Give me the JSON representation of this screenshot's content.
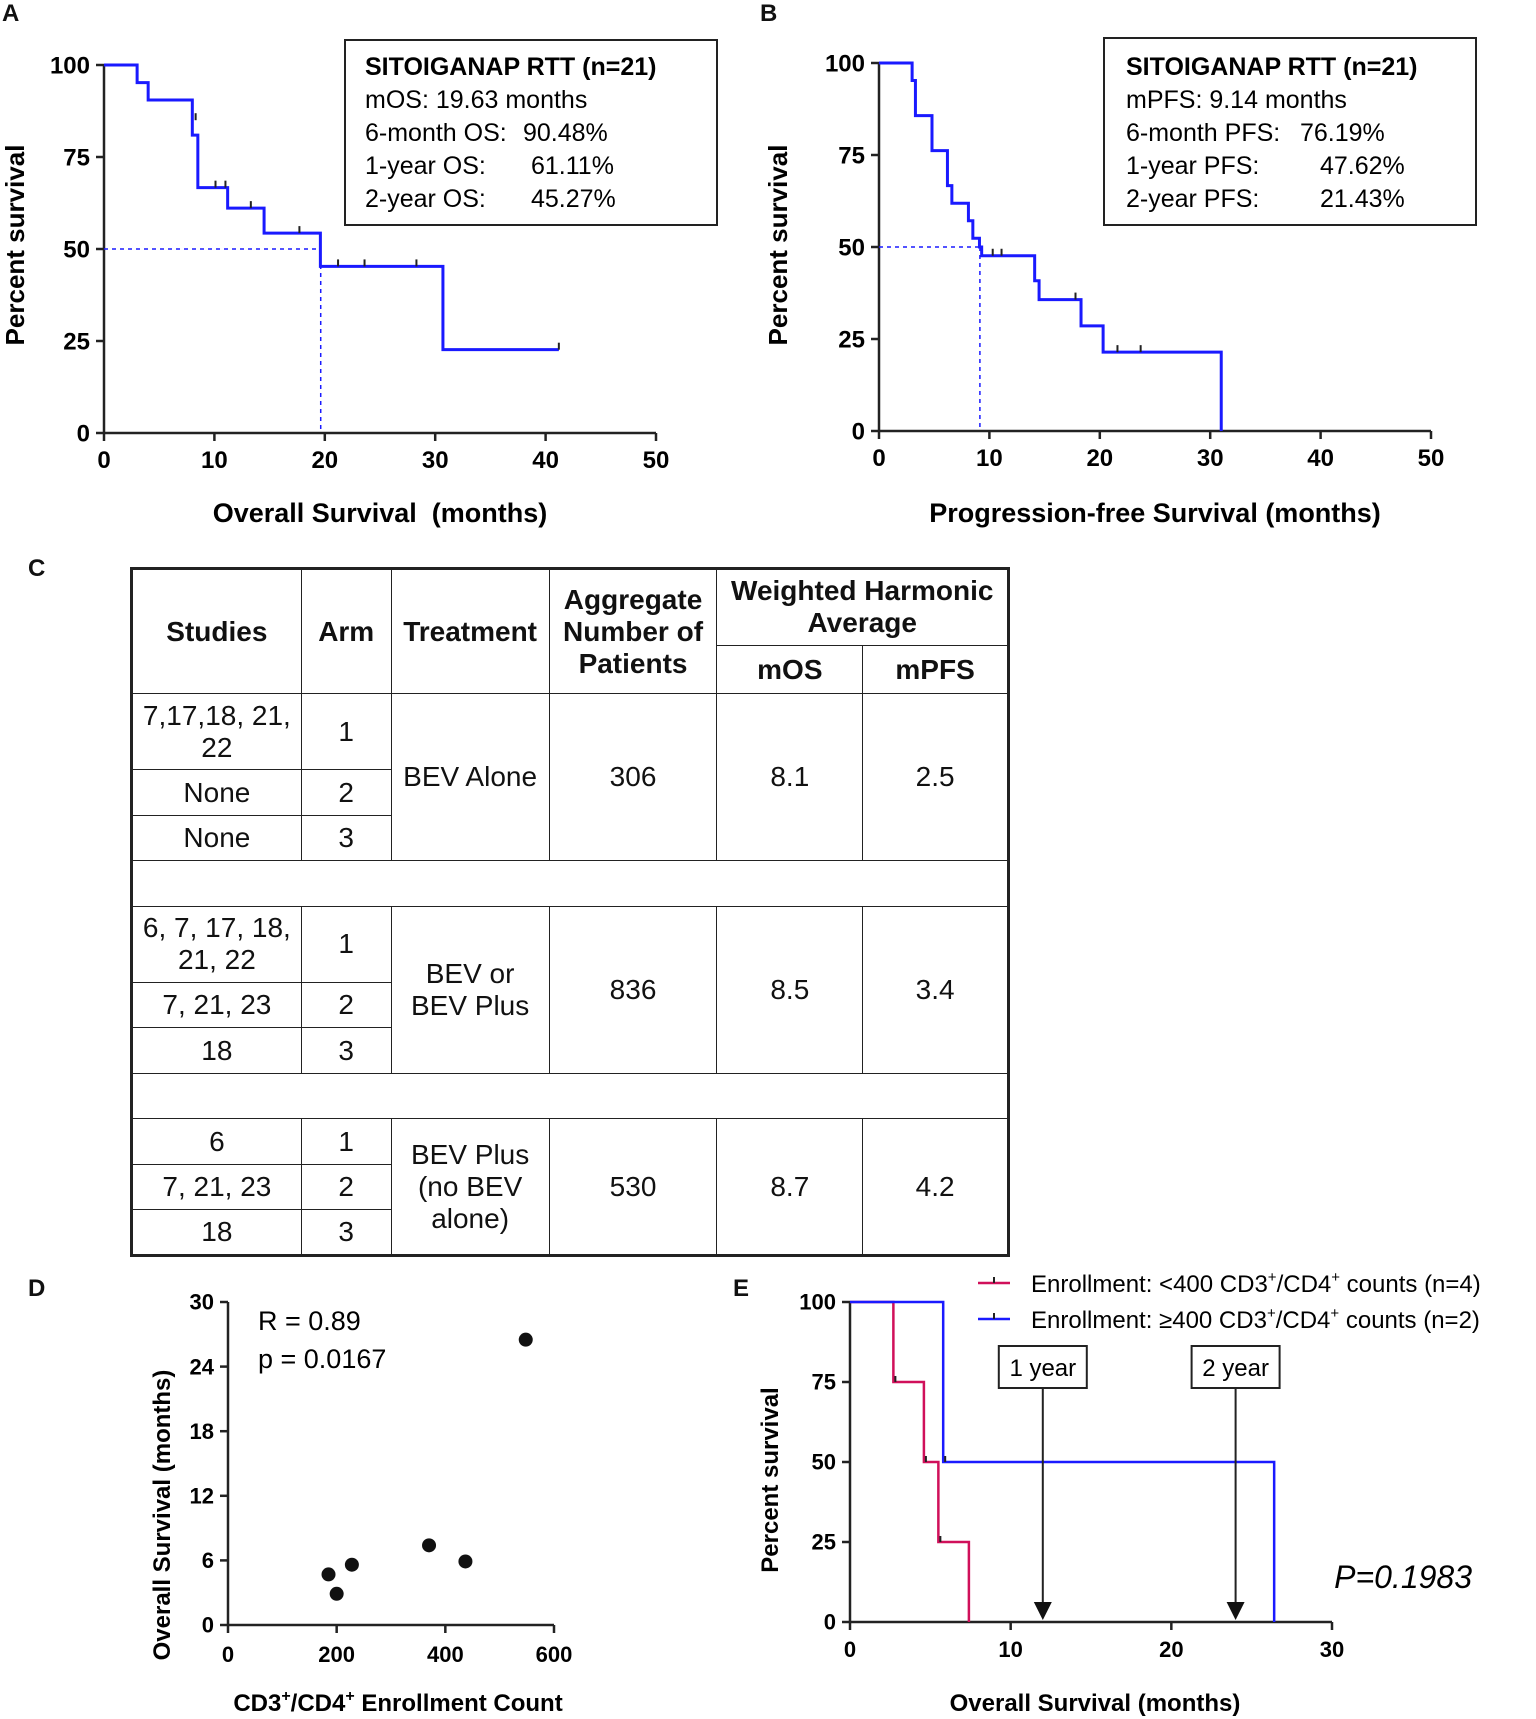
{
  "panel_labels": {
    "a": "A",
    "b": "B",
    "c": "C",
    "d": "D",
    "e": "E"
  },
  "chart_data": [
    {
      "id": "A",
      "type": "line",
      "subtype": "kaplan-meier",
      "xlabel": "Overall Survival  (months)",
      "ylabel": "Percent survival",
      "xlim": [
        0,
        50
      ],
      "ylim": [
        0,
        100
      ],
      "xticks": [
        "0",
        "10",
        "20",
        "30",
        "40",
        "50"
      ],
      "yticks": [
        "0",
        "25",
        "50",
        "75",
        "100"
      ],
      "x": [
        0,
        3,
        3,
        4,
        4,
        8,
        8,
        8.5,
        8.5,
        11.2,
        11.2,
        14.5,
        14.5,
        19.6,
        19.6,
        30.7,
        30.7,
        41.2
      ],
      "y": [
        100,
        100,
        95.2,
        95.2,
        90.48,
        90.48,
        80.95,
        80.95,
        66.67,
        66.67,
        61.11,
        61.11,
        54.32,
        54.32,
        45.27,
        45.27,
        22.64,
        22.64
      ],
      "censor_x": [
        8.3,
        10.1,
        11.0,
        13.3,
        17.7,
        21.2,
        23.6,
        28.3,
        41.2
      ],
      "censor_y": [
        85,
        66.67,
        66.67,
        61.11,
        54.32,
        45.27,
        45.27,
        45.27,
        22.64
      ],
      "median_x": 19.63,
      "series_color": "#1a1aff",
      "legend_box": {
        "title": "SITOIGANAP RTT (n=21)",
        "lines": [
          {
            "label": "mOS: 19.63 months",
            "value": ""
          },
          {
            "label": "6-month OS:",
            "value": "90.48%"
          },
          {
            "label": "1-year OS:",
            "value": "61.11%"
          },
          {
            "label": "2-year OS:",
            "value": "45.27%"
          }
        ]
      }
    },
    {
      "id": "B",
      "type": "line",
      "subtype": "kaplan-meier",
      "xlabel": "Progression-free Survival (months)",
      "ylabel": "Percent survival",
      "xlim": [
        0,
        50
      ],
      "ylim": [
        0,
        100
      ],
      "xticks": [
        "0",
        "10",
        "20",
        "30",
        "40",
        "50"
      ],
      "yticks": [
        "0",
        "25",
        "50",
        "75",
        "100"
      ],
      "x": [
        0,
        3,
        3,
        3.3,
        3.3,
        4.8,
        4.8,
        6.2,
        6.2,
        6.6,
        6.6,
        8.1,
        8.1,
        8.5,
        8.5,
        9.1,
        9.1,
        9.3,
        9.3,
        14.1,
        14.1,
        14.5,
        14.5,
        18.3,
        18.3,
        20.3,
        20.3,
        31.0,
        31.0
      ],
      "y": [
        100,
        100,
        95.24,
        95.24,
        85.71,
        85.71,
        76.19,
        76.19,
        66.67,
        66.67,
        61.9,
        61.9,
        57.14,
        57.14,
        52.38,
        52.38,
        50,
        50,
        47.62,
        47.62,
        40.82,
        40.82,
        35.71,
        35.71,
        28.57,
        28.57,
        21.43,
        21.43,
        0
      ],
      "censor_x": [
        10.3,
        11.1,
        17.8,
        21.6,
        23.7
      ],
      "censor_y": [
        47.62,
        47.62,
        35.71,
        21.43,
        21.43
      ],
      "median_x": 9.14,
      "series_color": "#1a1aff",
      "legend_box": {
        "title": "SITOIGANAP RTT (n=21)",
        "lines": [
          {
            "label": "mPFS: 9.14 months",
            "value": ""
          },
          {
            "label": "6-month PFS:",
            "value": "76.19%"
          },
          {
            "label": "1-year PFS:",
            "value": "47.62%"
          },
          {
            "label": "2-year PFS:",
            "value": "21.43%"
          }
        ]
      }
    },
    {
      "id": "C",
      "type": "table",
      "headers": {
        "studies": "Studies",
        "arm": "Arm",
        "treatment": "Treatment",
        "aggregate": "Aggregate Number of Patients",
        "weighted": "Weighted Harmonic Average",
        "mos": "mOS",
        "mpfs": "mPFS"
      },
      "groups": [
        {
          "treatment": "BEV Alone",
          "patients": "306",
          "mos": "8.1",
          "mpfs": "2.5",
          "rows": [
            {
              "studies": "7,17,18, 21, 22",
              "arm": "1"
            },
            {
              "studies": "None",
              "arm": "2"
            },
            {
              "studies": "None",
              "arm": "3"
            }
          ]
        },
        {
          "treatment": "BEV or BEV Plus",
          "patients": "836",
          "mos": "8.5",
          "mpfs": "3.4",
          "rows": [
            {
              "studies": "6, 7, 17, 18, 21, 22",
              "arm": "1"
            },
            {
              "studies": "7, 21, 23",
              "arm": "2"
            },
            {
              "studies": "18",
              "arm": "3"
            }
          ]
        },
        {
          "treatment": "BEV Plus (no BEV alone)",
          "patients": "530",
          "mos": "8.7",
          "mpfs": "4.2",
          "rows": [
            {
              "studies": "6",
              "arm": "1"
            },
            {
              "studies": "7, 21, 23",
              "arm": "2"
            },
            {
              "studies": "18",
              "arm": "3"
            }
          ]
        }
      ]
    },
    {
      "id": "D",
      "type": "scatter",
      "xlabel_main": "CD3",
      "xlabel_sup1": "+",
      "xlabel_mid": "/CD4",
      "xlabel_sup2": "+",
      "xlabel_end": " Enrollment Count",
      "ylabel": "Overall Survival (months)",
      "xlim": [
        0,
        600
      ],
      "ylim": [
        0,
        30
      ],
      "xticks": [
        "0",
        "200",
        "400",
        "600"
      ],
      "yticks": [
        "0",
        "6",
        "12",
        "18",
        "24",
        "30"
      ],
      "x": [
        185,
        200,
        228,
        370,
        437,
        548
      ],
      "y": [
        4.7,
        2.9,
        5.6,
        7.4,
        5.9,
        26.5
      ],
      "annotation_r": "R = 0.89",
      "annotation_p": "p = 0.0167"
    },
    {
      "id": "E",
      "type": "line",
      "subtype": "kaplan-meier",
      "xlabel": "Overall Survival (months)",
      "ylabel": "Percent survival",
      "xlim": [
        0,
        30
      ],
      "ylim": [
        0,
        100
      ],
      "xticks": [
        "0",
        "10",
        "20",
        "30"
      ],
      "yticks": [
        "0",
        "25",
        "50",
        "75",
        "100"
      ],
      "series": [
        {
          "name_pre": "Enrollment: <400 CD3",
          "name_mid": "/CD4",
          "name_post": " counts (n=4)",
          "sup": "+",
          "color": "#d0105a",
          "x": [
            0,
            2.7,
            2.7,
            4.6,
            4.6,
            5.5,
            5.5,
            7.4,
            7.4
          ],
          "y": [
            100,
            100,
            75,
            75,
            50,
            50,
            25,
            25,
            0
          ]
        },
        {
          "name_pre": "Enrollment: ≥400 CD3",
          "name_mid": "/CD4",
          "name_post": " counts (n=2)",
          "sup": "+",
          "color": "#1a1aff",
          "x": [
            0,
            5.8,
            5.8,
            26.4,
            26.4
          ],
          "y": [
            100,
            100,
            50,
            50,
            0
          ]
        }
      ],
      "markers": [
        {
          "label": "1 year",
          "x": 12
        },
        {
          "label": "2 year",
          "x": 24
        }
      ],
      "pvalue": "P=0.1983"
    }
  ]
}
